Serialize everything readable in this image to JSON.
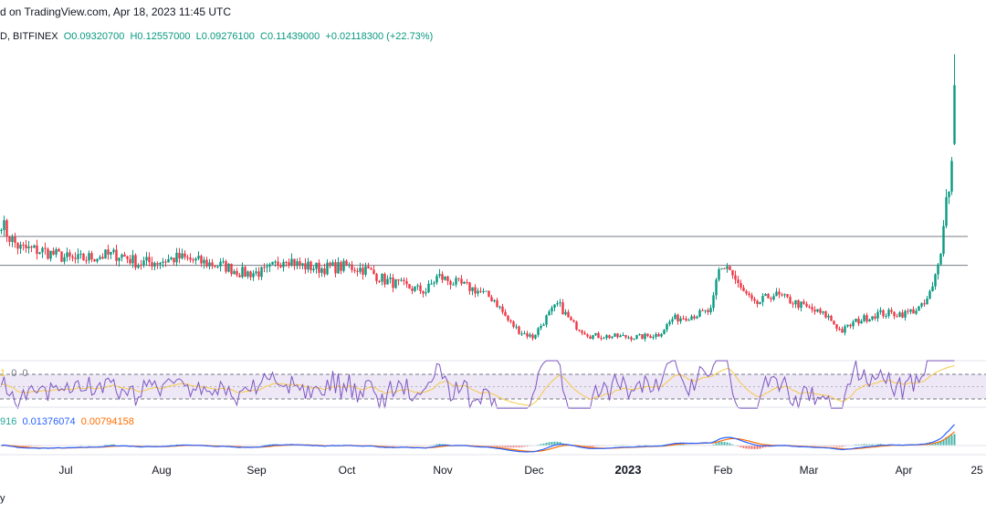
{
  "header": {
    "published": "d on TradingView.com, Apr 18, 2023 11:45 UTC",
    "symbol": "D, BITFINEX",
    "open": "O0.09320700",
    "high": "H0.12557000",
    "low": "L0.09276100",
    "close": "C0.11439000",
    "change": "+0.02118300 (+22.73%)"
  },
  "rsi": {
    "label_a": "1",
    "label_b": "0",
    "label_c": "0",
    "upper_band": 70,
    "lower_band": 30,
    "colors": {
      "rsi": "#7e57c2",
      "ma": "#f7c948",
      "band_fill": "#ede7f6"
    }
  },
  "macd": {
    "label_macd": "916",
    "label_signal": "0.01376074",
    "label_hist": "0.00794158",
    "colors": {
      "macd": "#2962ff",
      "signal": "#ff6d00",
      "hist_up": "#26a69a",
      "hist_down": "#ef5350"
    }
  },
  "bottom_label": "y",
  "chart_data": {
    "type": "candlestick",
    "x_axis_labels": [
      "Jul",
      "Aug",
      "Sep",
      "Oct",
      "Nov",
      "Dec",
      "2023",
      "Feb",
      "Mar",
      "Apr",
      "25"
    ],
    "horizontal_levels": [
      0.0598,
      0.0494
    ],
    "colors": {
      "up": "#089981",
      "down": "#f23645",
      "level": "#787b86"
    },
    "price_path_knots": [
      [
        0,
        0.0652
      ],
      [
        8,
        0.0598
      ],
      [
        20,
        0.0556
      ],
      [
        45,
        0.0546
      ],
      [
        80,
        0.0512
      ],
      [
        105,
        0.0527
      ],
      [
        130,
        0.0533
      ],
      [
        150,
        0.0502
      ],
      [
        170,
        0.0507
      ],
      [
        195,
        0.0521
      ],
      [
        220,
        0.0505
      ],
      [
        245,
        0.049
      ],
      [
        265,
        0.0465
      ],
      [
        290,
        0.047
      ],
      [
        312,
        0.0526
      ],
      [
        325,
        0.0495
      ],
      [
        350,
        0.0483
      ],
      [
        380,
        0.049
      ],
      [
        400,
        0.0478
      ],
      [
        420,
        0.044
      ],
      [
        445,
        0.0415
      ],
      [
        465,
        0.04
      ],
      [
        478,
        0.0455
      ],
      [
        495,
        0.0432
      ],
      [
        520,
        0.0405
      ],
      [
        540,
        0.037
      ],
      [
        556,
        0.029
      ],
      [
        568,
        0.0255
      ],
      [
        582,
        0.0235
      ],
      [
        598,
        0.031
      ],
      [
        610,
        0.0355
      ],
      [
        625,
        0.0285
      ],
      [
        645,
        0.024
      ],
      [
        670,
        0.0237
      ],
      [
        700,
        0.0235
      ],
      [
        720,
        0.0245
      ],
      [
        735,
        0.03
      ],
      [
        760,
        0.0315
      ],
      [
        778,
        0.033
      ],
      [
        785,
        0.047
      ],
      [
        795,
        0.0495
      ],
      [
        808,
        0.0415
      ],
      [
        825,
        0.035
      ],
      [
        845,
        0.039
      ],
      [
        865,
        0.0365
      ],
      [
        890,
        0.033
      ],
      [
        905,
        0.031
      ],
      [
        920,
        0.0255
      ],
      [
        935,
        0.029
      ],
      [
        960,
        0.032
      ],
      [
        990,
        0.032
      ],
      [
        1010,
        0.0345
      ],
      [
        1020,
        0.041
      ],
      [
        1028,
        0.052
      ],
      [
        1033,
        0.07
      ],
      [
        1038,
        0.078
      ],
      [
        1043,
        0.092
      ],
      [
        1048,
        0.1144
      ]
    ],
    "last_candle": {
      "open": 0.0932,
      "high": 0.12557,
      "low": 0.09276,
      "close": 0.11439
    }
  }
}
